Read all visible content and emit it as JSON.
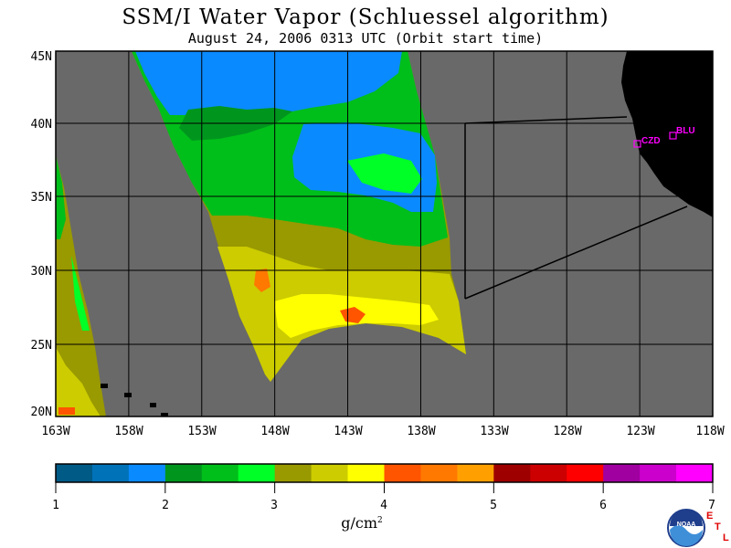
{
  "title": "SSM/I Water Vapor (Schluessel algorithm)",
  "subtitle": "August 24, 2006  0313 UTC  (Orbit start time)",
  "map": {
    "lat_labels": [
      "45N",
      "40N",
      "35N",
      "30N",
      "25N",
      "20N"
    ],
    "lon_labels": [
      "163W",
      "158W",
      "153W",
      "148W",
      "143W",
      "138W",
      "133W",
      "128W",
      "123W",
      "118W"
    ],
    "stations": [
      {
        "code": "CZD",
        "color": "#ff00ff"
      },
      {
        "code": "BLU",
        "color": "#ff00ff"
      }
    ],
    "background_colors": {
      "ocean": "#696969",
      "land": "#000000",
      "grid": "#000000"
    }
  },
  "colorbar": {
    "colors": [
      "#005a86",
      "#0072b8",
      "#0a8aff",
      "#00961e",
      "#00bf1a",
      "#00ff26",
      "#999900",
      "#cccc00",
      "#ffff00",
      "#ff5400",
      "#ff7800",
      "#ffa000",
      "#9e0000",
      "#cc0000",
      "#ff0000",
      "#a000a0",
      "#cc00cc",
      "#ff00ff"
    ],
    "tick_labels": [
      "1",
      "2",
      "3",
      "4",
      "5",
      "6",
      "7"
    ],
    "unit": "g/cm",
    "unit_exp": "2"
  },
  "logos": {
    "noaa": "NOAA",
    "etl": [
      "E",
      "T",
      "L"
    ]
  }
}
